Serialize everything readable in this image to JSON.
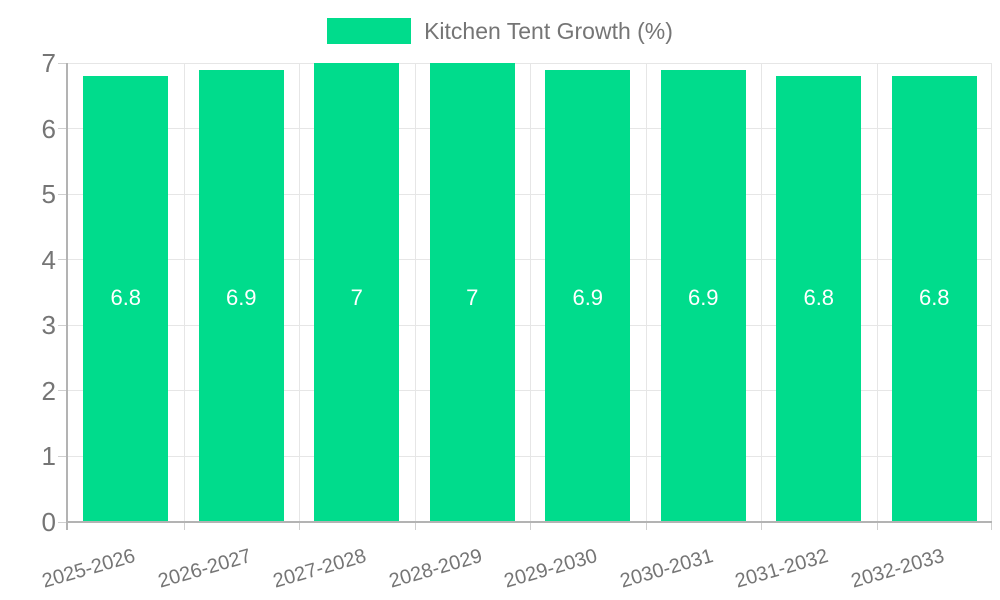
{
  "legend": {
    "label": "Kitchen Tent Growth (%)"
  },
  "chart_data": {
    "type": "bar",
    "title": "Kitchen Tent Growth (%)",
    "categories": [
      "2025-2026",
      "2026-2027",
      "2027-2028",
      "2028-2029",
      "2029-2030",
      "2030-2031",
      "2031-2032",
      "2032-2033"
    ],
    "series": [
      {
        "name": "Kitchen Tent Growth (%)",
        "values": [
          6.8,
          6.9,
          7,
          7,
          6.9,
          6.9,
          6.8,
          6.8
        ]
      }
    ],
    "bar_labels": [
      "6.8",
      "6.9",
      "7",
      "7",
      "6.9",
      "6.9",
      "6.8",
      "6.8"
    ],
    "xlabel": "",
    "ylabel": "",
    "ylim": [
      0,
      7
    ],
    "yticks": [
      0,
      1,
      2,
      3,
      4,
      5,
      6,
      7
    ],
    "grid": true,
    "legend_position": "top-center",
    "x_label_rotation_deg": -16,
    "colors": {
      "bar": "#00DC8C",
      "grid": "#e6e6e6",
      "axis": "#b3b3b3",
      "tick": "#cfcfcf",
      "text": "#757575",
      "bar_value_text": "#ffffff",
      "background": "#ffffff"
    }
  }
}
